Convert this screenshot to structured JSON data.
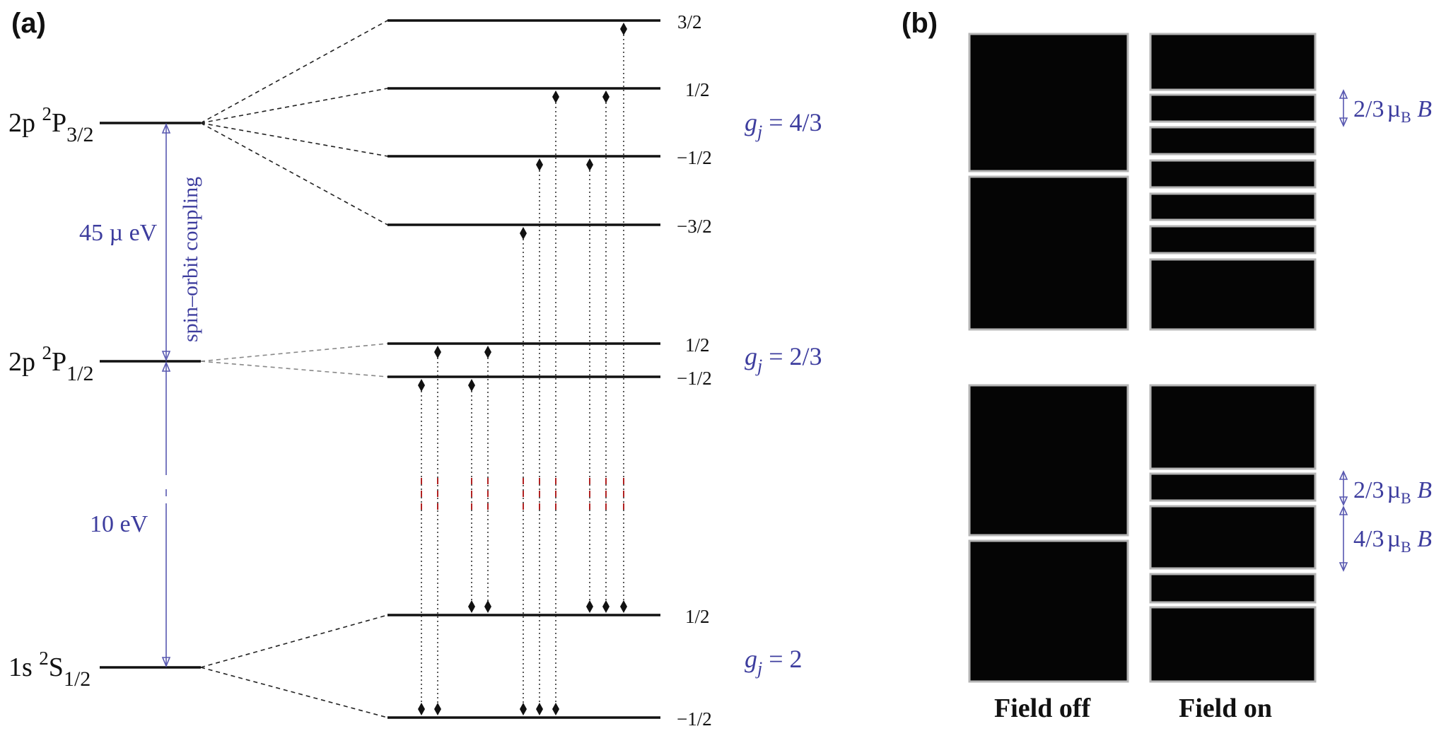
{
  "panel_a": {
    "label": "(a)",
    "terms": {
      "p32": {
        "main": "2p ",
        "sup": "2",
        "letter": "P",
        "sub": "3/2"
      },
      "p12": {
        "main": "2p ",
        "sup": "2",
        "letter": "P",
        "sub": "1/2"
      },
      "s12": {
        "main": "1s ",
        "sup": "2",
        "letter": "S",
        "sub": "1/2"
      }
    },
    "fine_structure_label": "45 µ eV",
    "spin_orbit_label": "spin–orbit coupling",
    "lyman_gap_label": "10 eV",
    "mj_labels": {
      "p32": [
        "3/2",
        "1/2",
        "−1/2",
        "−3/2"
      ],
      "p12": [
        "1/2",
        "−1/2"
      ],
      "s12": [
        "1/2",
        "−1/2"
      ]
    },
    "g_factors": {
      "p32": {
        "lhs": "g",
        "sub": "j",
        "rhs": " = 4/3"
      },
      "p12": {
        "lhs": "g",
        "sub": "j",
        "rhs": " = 2/3"
      },
      "s12": {
        "lhs": "g",
        "sub": "j",
        "rhs": " = 2"
      }
    }
  },
  "panel_b": {
    "label": "(b)",
    "spacing_top": {
      "frac": "2/3",
      "mu": "µ",
      "musub": "B",
      "field": " B"
    },
    "spacing_bottom_1": {
      "frac": "2/3",
      "mu": "µ",
      "musub": "B",
      "field": " B"
    },
    "spacing_bottom_2": {
      "frac": "4/3",
      "mu": "µ",
      "musub": "B",
      "field": " B"
    },
    "caption_off": "Field off",
    "caption_on": "Field on"
  }
}
